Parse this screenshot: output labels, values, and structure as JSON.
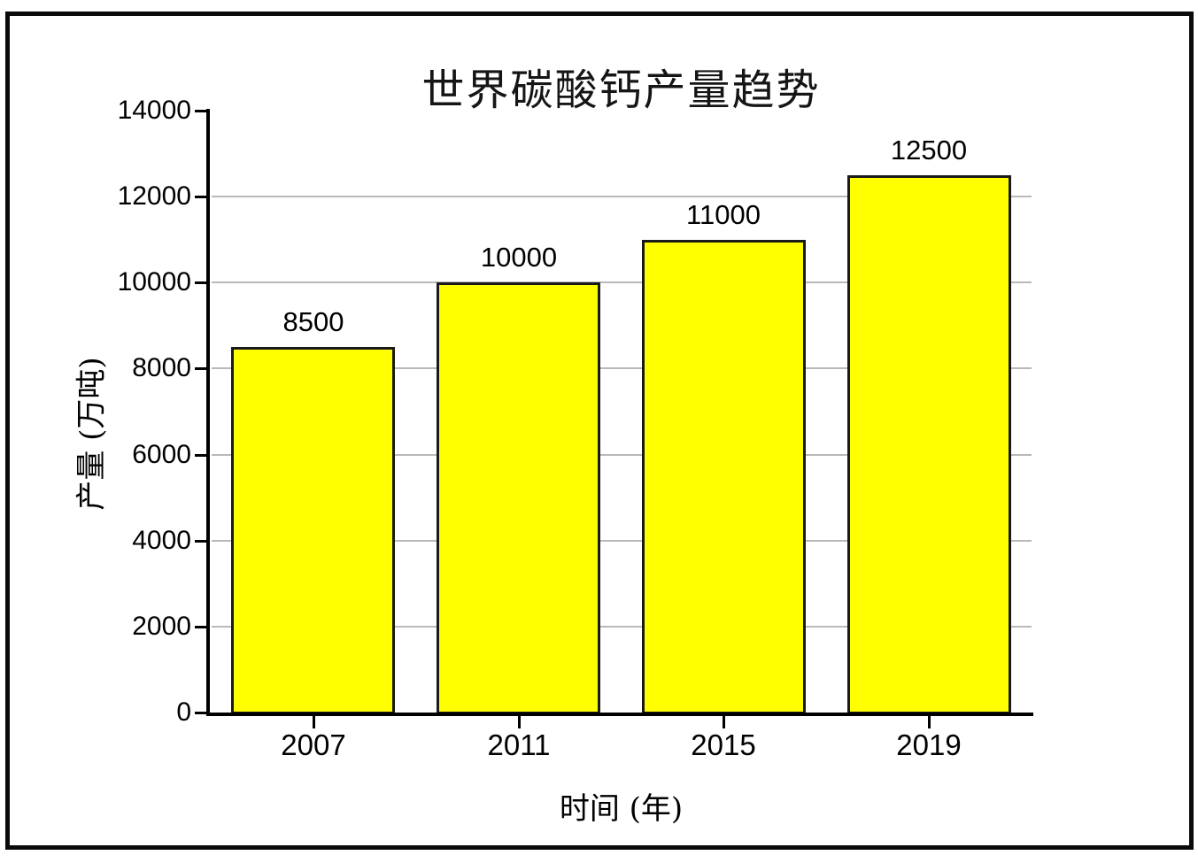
{
  "chart_data": {
    "type": "bar",
    "title": "世界碳酸钙产量趋势",
    "xlabel": "时间 (年)",
    "ylabel": "产量 (万吨)",
    "categories": [
      "2007",
      "2011",
      "2015",
      "2019"
    ],
    "values": [
      8500,
      10000,
      11000,
      12500
    ],
    "bar_value_labels": [
      "8500",
      "10000",
      "11000",
      "12500"
    ],
    "ylim": [
      0,
      14000
    ],
    "ytick_interval": 2000,
    "ytick_labels": [
      "0",
      "2000",
      "4000",
      "6000",
      "8000",
      "10000",
      "12000",
      "14000"
    ],
    "grid": "horizontal",
    "legend_position": "none",
    "colors": {
      "bar_fill": "#FFFF00",
      "bar_border": "#1A1A1A",
      "gridline": "#B9B9B9",
      "axis": "#000000",
      "text": "#000000",
      "background": "#FFFFFF",
      "frame_border": "#0A0A0A"
    }
  }
}
